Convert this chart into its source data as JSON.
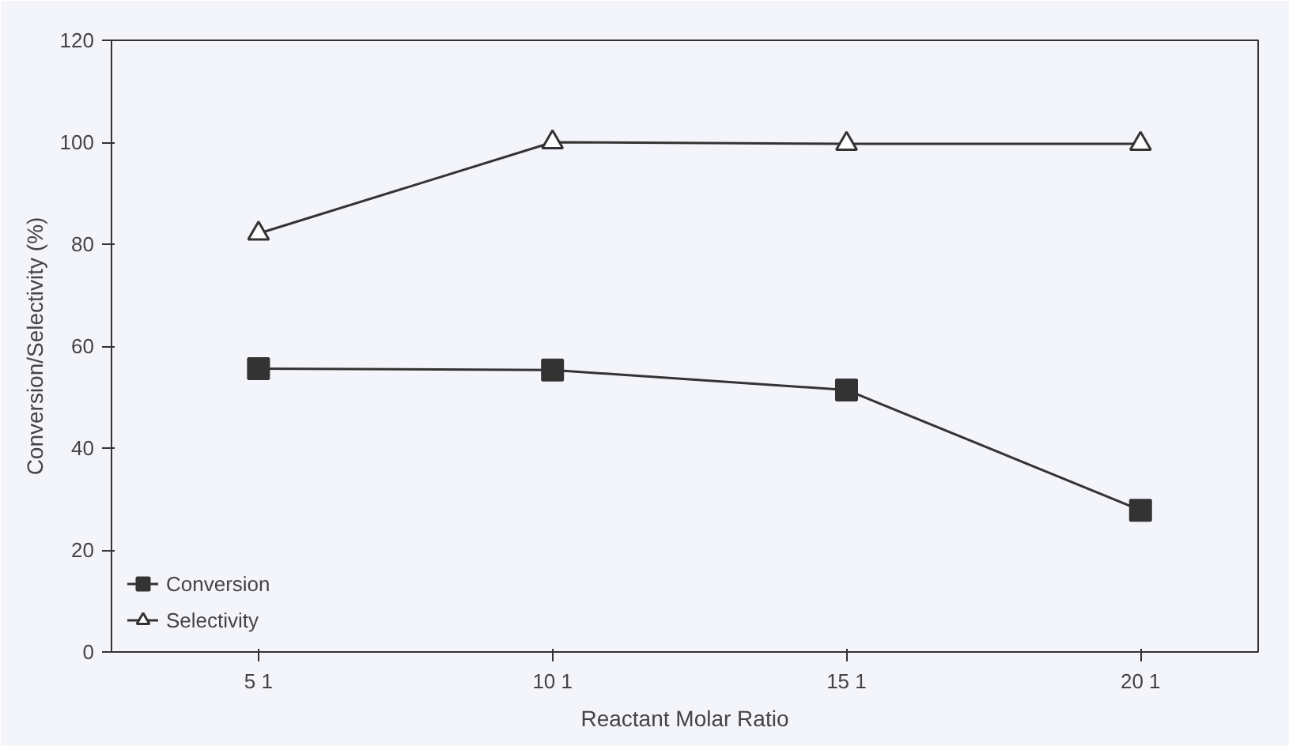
{
  "chart_data": {
    "type": "line",
    "xlabel": "Reactant Molar Ratio",
    "ylabel": "Conversion/Selectivity (%)",
    "categories": [
      "5 1",
      "10 1",
      "15 1",
      "20 1"
    ],
    "series": [
      {
        "name": "Conversion",
        "color": "#333333",
        "marker": "square",
        "values": [
          55.6,
          55.3,
          51.4,
          27.8
        ]
      },
      {
        "name": "Selectivity",
        "color": "#333333",
        "marker": "triangle",
        "values": [
          82.1,
          100,
          99.7,
          99.7
        ]
      }
    ],
    "ylim": [
      0,
      120
    ],
    "yticks": [
      0,
      20,
      40,
      60,
      80,
      100,
      120
    ],
    "grid": false,
    "legend": "bottom left",
    "line_style": "solid"
  }
}
